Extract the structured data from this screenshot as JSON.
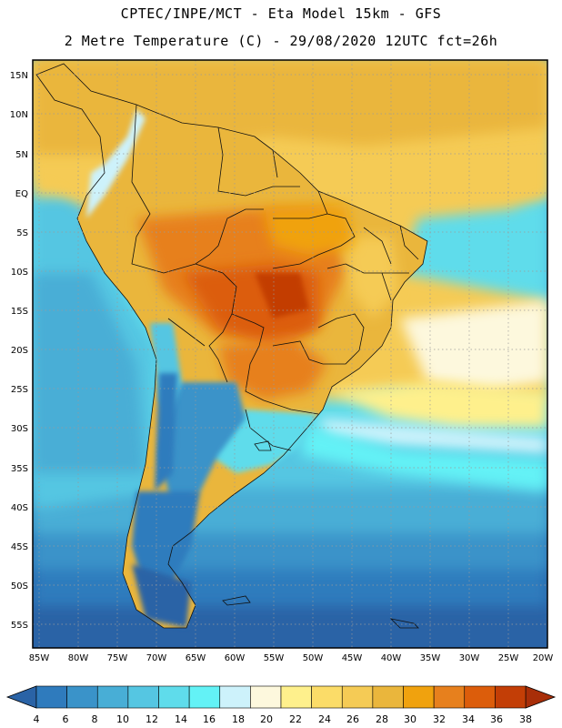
{
  "title_line1": "CPTEC/INPE/MCT -  Eta Model 15km - GFS",
  "title_line2": "2 Metre Temperature (C) - 29/08/2020 12UTC fct=26h",
  "lat_labels": [
    "15N",
    "10N",
    "5N",
    "EQ",
    "5S",
    "10S",
    "15S",
    "20S",
    "25S",
    "30S",
    "35S",
    "40S",
    "45S",
    "50S",
    "55S"
  ],
  "lon_labels": [
    "85W",
    "80W",
    "75W",
    "70W",
    "65W",
    "60W",
    "55W",
    "50W",
    "45W",
    "40W",
    "35W",
    "30W",
    "25W",
    "20W"
  ],
  "colorbar": {
    "labels": [
      "4",
      "6",
      "8",
      "10",
      "12",
      "14",
      "16",
      "18",
      "20",
      "22",
      "24",
      "26",
      "28",
      "30",
      "32",
      "34",
      "36",
      "38"
    ],
    "colors": [
      "#2a63a6",
      "#2f7bbd",
      "#3a93c9",
      "#48aed6",
      "#55c6e2",
      "#5fdceb",
      "#63f2f6",
      "#cdf2fb",
      "#fdf8dd",
      "#fef08c",
      "#fbdc68",
      "#f5cb55",
      "#eab63c",
      "#f0a20e",
      "#e7801d",
      "#dc5d0b",
      "#c33e06",
      "#a82e08"
    ]
  }
}
